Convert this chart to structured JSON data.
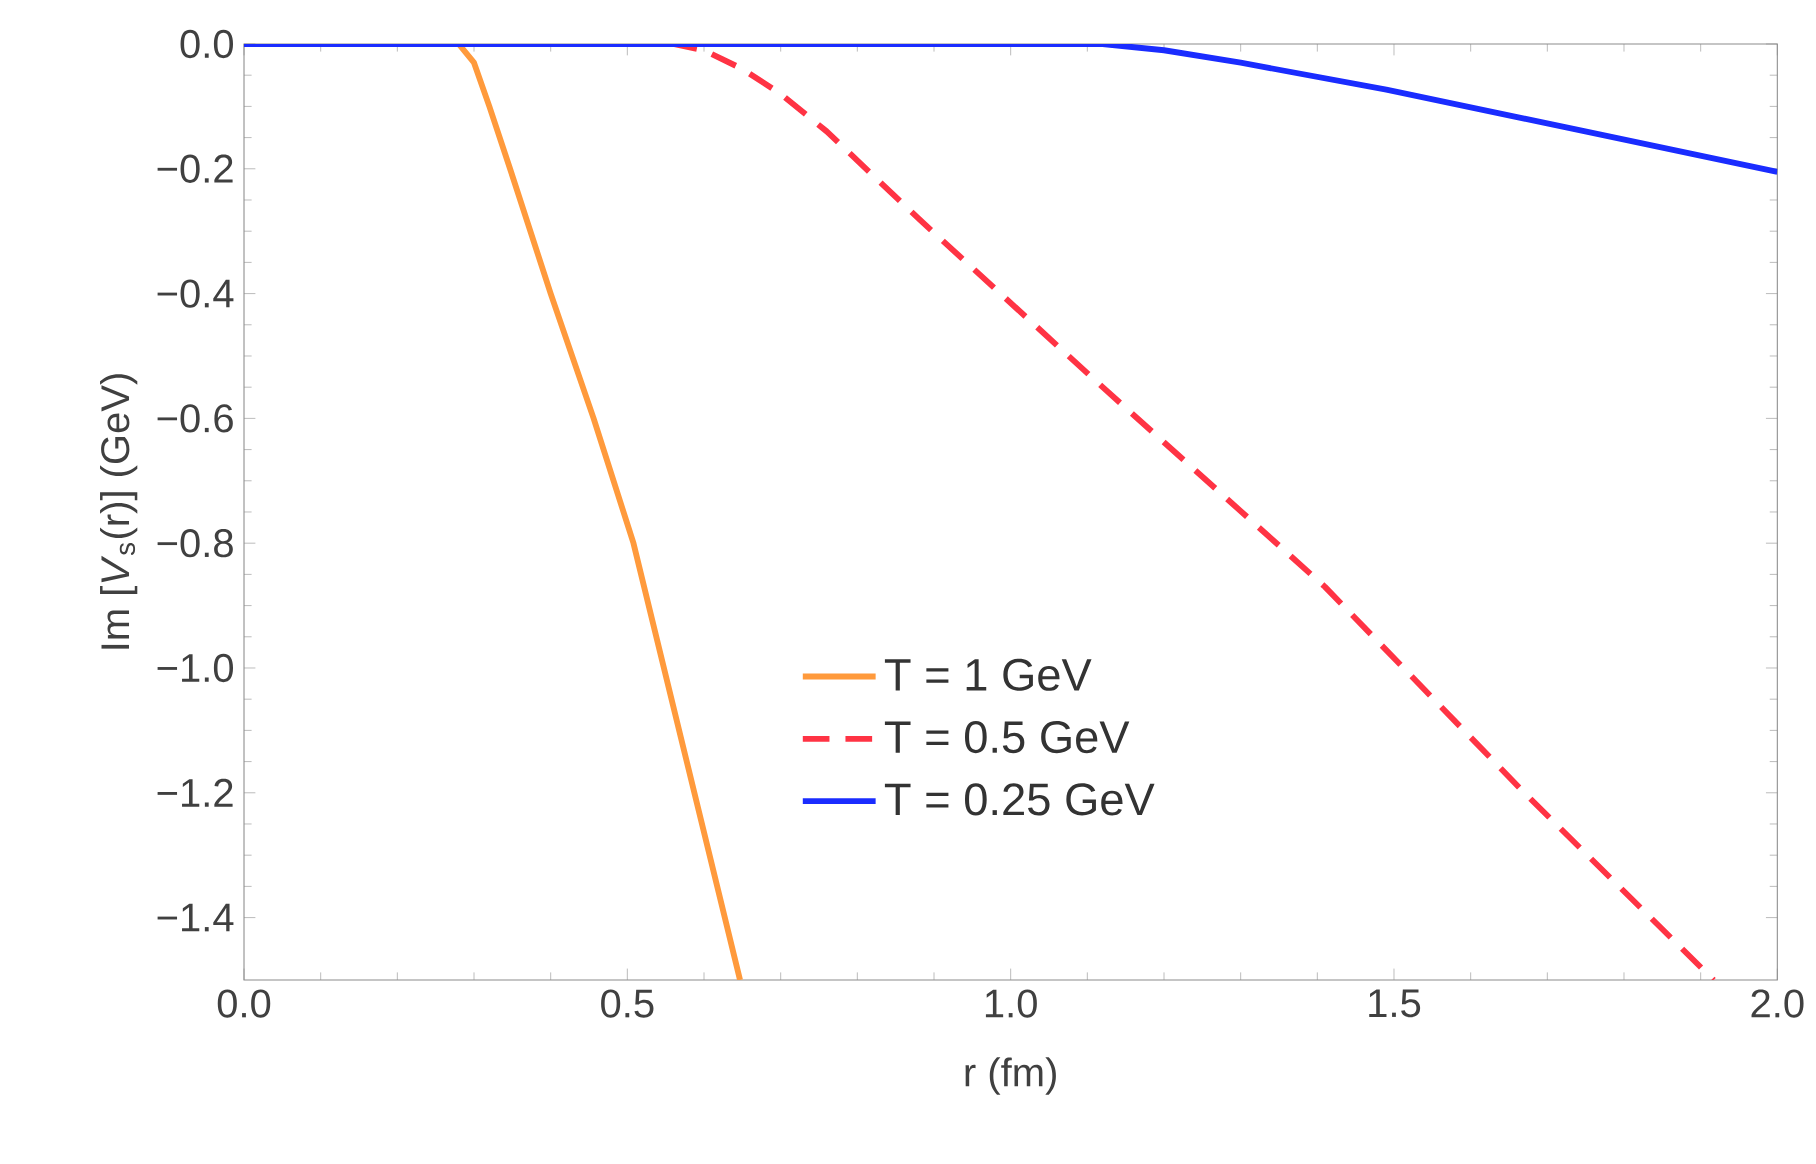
{
  "chart_data": {
    "type": "line",
    "xlabel": "r (fm)",
    "ylabel": "Im [*V*$_{s}$(r)]  (GeV)",
    "xlim": [
      0,
      2.0
    ],
    "ylim": [
      -1.5,
      0.0
    ],
    "xticks": [
      {
        "value": 0,
        "label": "0.0"
      },
      {
        "value": 0.5,
        "label": "0.5"
      },
      {
        "value": 1.0,
        "label": "1.0"
      },
      {
        "value": 1.5,
        "label": "1.5"
      },
      {
        "value": 2.0,
        "label": "2.0"
      }
    ],
    "yticks": [
      {
        "value": 0,
        "label": "0.0"
      },
      {
        "value": -0.2,
        "label": "−0.2"
      },
      {
        "value": -0.4,
        "label": "−0.4"
      },
      {
        "value": -0.6,
        "label": "−0.6"
      },
      {
        "value": -0.8,
        "label": "−0.8"
      },
      {
        "value": -1.0,
        "label": "−1.0"
      },
      {
        "value": -1.2,
        "label": "−1.2"
      },
      {
        "value": -1.4,
        "label": "−1.4"
      }
    ],
    "grid": false,
    "legend": "bottom",
    "series": [
      {
        "name": "T = 1 GeV",
        "color": "#ff9a3c",
        "line_style": "solid",
        "x": [
          0,
          0.28,
          0.3,
          0.32,
          0.347,
          0.4,
          0.456,
          0.508,
          0.647
        ],
        "values": [
          0,
          0,
          -0.03,
          -0.1,
          -0.2,
          -0.4,
          -0.6,
          -0.8,
          -1.5
        ]
      },
      {
        "name": "T = 0.5 GeV",
        "color": "#ff3344",
        "line_style": "dashed",
        "x": [
          0,
          0.56,
          0.6,
          0.65,
          0.7,
          0.76,
          0.88,
          1.12,
          1.41,
          1.67,
          1.917
        ],
        "values": [
          0,
          0,
          -0.01,
          -0.04,
          -0.08,
          -0.14,
          -0.28,
          -0.55,
          -0.87,
          -1.2,
          -1.5
        ]
      },
      {
        "name": "T = 0.25 GeV",
        "color": "#1a2cff",
        "line_style": "solid",
        "x": [
          0,
          1.12,
          1.2,
          1.3,
          1.49,
          1.734,
          2.0
        ],
        "values": [
          0,
          0,
          -0.01,
          -0.03,
          -0.073,
          -0.136,
          -0.205
        ]
      }
    ]
  }
}
